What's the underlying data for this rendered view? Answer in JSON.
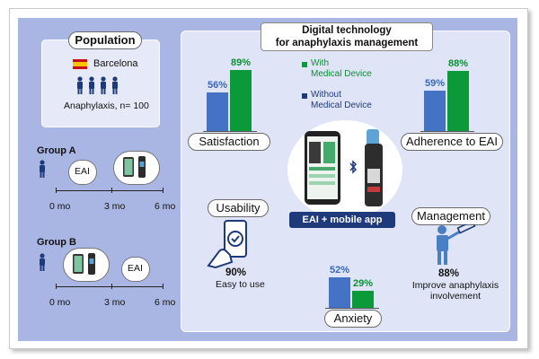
{
  "title": {
    "line1": "Digital technology",
    "line2": "for anaphylaxis management"
  },
  "population": {
    "heading": "Population",
    "city": "Barcelona",
    "sample": "Anaphylaxis, n= 100"
  },
  "groups": [
    {
      "label": "Group A",
      "first": "EAI",
      "ticks": [
        "0 mo",
        "3 mo",
        "6 mo"
      ]
    },
    {
      "label": "Group B",
      "second": "EAI",
      "ticks": [
        "0 mo",
        "3 mo",
        "6 mo"
      ]
    }
  ],
  "legend": {
    "with": "With\nMedical Device",
    "without": "Without\nMedical Device",
    "with_color": "#0b9a3a",
    "without_color": "#4472c4"
  },
  "center_label": "EAI + mobile app",
  "outcomes": {
    "satisfaction": {
      "label": "Satisfaction"
    },
    "adherence": {
      "label": "Adherence to EAI"
    },
    "usability": {
      "label": "Usability",
      "value": "90%",
      "desc": "Easy to use"
    },
    "anxiety": {
      "label": "Anxiety"
    },
    "management": {
      "label": "Management",
      "value": "88%",
      "desc": "Improve anaphylaxis\ninvolvement"
    }
  },
  "chart_data": [
    {
      "type": "bar",
      "title": "Satisfaction",
      "categories": [
        "Without Medical Device",
        "With Medical Device"
      ],
      "values": [
        56,
        89
      ],
      "labels": [
        "56%",
        "89%"
      ],
      "ylim": [
        0,
        100
      ]
    },
    {
      "type": "bar",
      "title": "Adherence to EAI",
      "categories": [
        "Without Medical Device",
        "With Medical Device"
      ],
      "values": [
        59,
        88
      ],
      "labels": [
        "59%",
        "88%"
      ],
      "ylim": [
        0,
        100
      ]
    },
    {
      "type": "bar",
      "title": "Anxiety",
      "categories": [
        "Without Medical Device",
        "With Medical Device"
      ],
      "values": [
        52,
        29
      ],
      "labels": [
        "52%",
        "29%"
      ],
      "ylim": [
        0,
        100
      ]
    }
  ]
}
